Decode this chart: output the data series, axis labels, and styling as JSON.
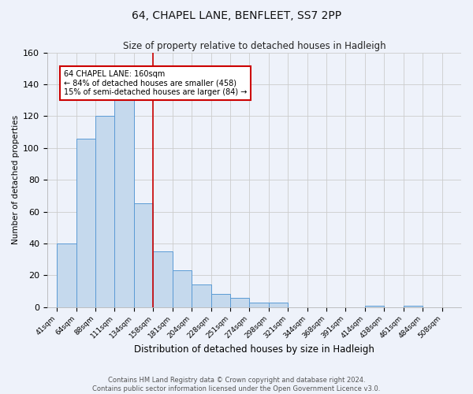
{
  "title": "64, CHAPEL LANE, BENFLEET, SS7 2PP",
  "subtitle": "Size of property relative to detached houses in Hadleigh",
  "xlabel": "Distribution of detached houses by size in Hadleigh",
  "ylabel": "Number of detached properties",
  "footnote1": "Contains HM Land Registry data © Crown copyright and database right 2024.",
  "footnote2": "Contains public sector information licensed under the Open Government Licence v3.0.",
  "bin_labels": [
    "41sqm",
    "64sqm",
    "88sqm",
    "111sqm",
    "134sqm",
    "158sqm",
    "181sqm",
    "204sqm",
    "228sqm",
    "251sqm",
    "274sqm",
    "298sqm",
    "321sqm",
    "344sqm",
    "368sqm",
    "391sqm",
    "414sqm",
    "438sqm",
    "461sqm",
    "484sqm",
    "508sqm"
  ],
  "bar_heights": [
    40,
    106,
    120,
    130,
    65,
    35,
    23,
    14,
    8,
    6,
    3,
    3,
    0,
    0,
    0,
    0,
    1,
    0,
    1,
    0,
    0
  ],
  "bar_color": "#c5d9ed",
  "bar_edge_color": "#5b9bd5",
  "grid_color": "#cccccc",
  "background_color": "#eef2fa",
  "red_line_color": "#cc0000",
  "annotation_text": "64 CHAPEL LANE: 160sqm\n← 84% of detached houses are smaller (458)\n15% of semi-detached houses are larger (84) →",
  "annotation_box_color": "#ffffff",
  "annotation_box_edge": "#cc0000",
  "ylim": [
    0,
    160
  ],
  "yticks": [
    0,
    20,
    40,
    60,
    80,
    100,
    120,
    140,
    160
  ],
  "red_line_bin": 5
}
